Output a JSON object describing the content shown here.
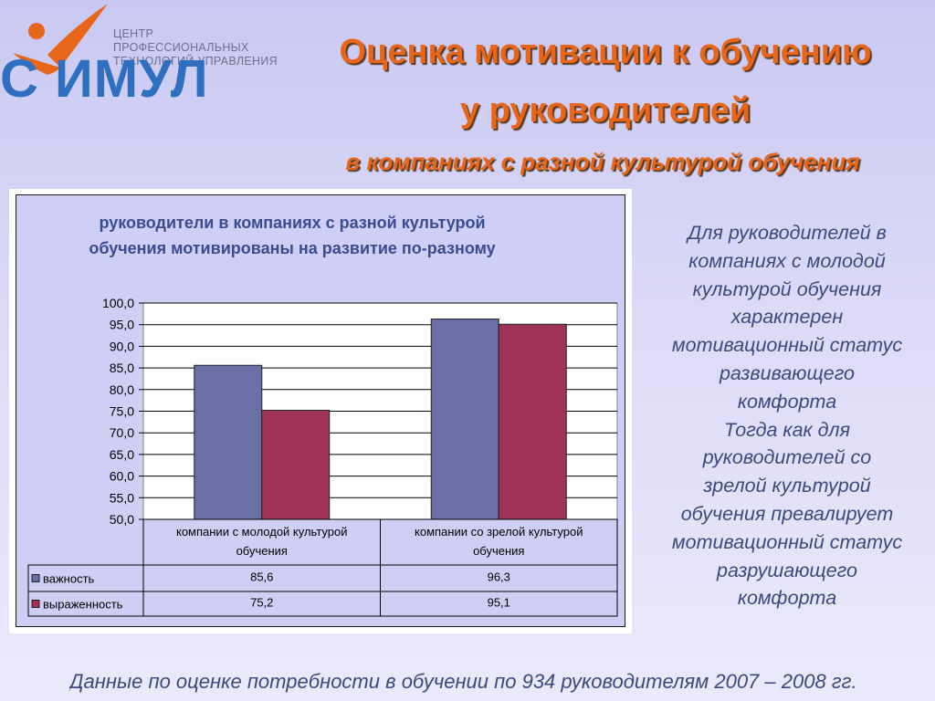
{
  "logo": {
    "subtitle_line1": "ЦЕНТР ПРОФЕССИОНАЛЬНЫХ",
    "subtitle_line2": "ТЕХНОЛОГИЙ УПРАВЛЕНИЯ",
    "name": "С ИМУЛ"
  },
  "header": {
    "title_line1": "Оценка мотивации к обучению",
    "title_line2": "у руководителей",
    "subtitle": "в компаниях с разной культурой обучения"
  },
  "chart_data": {
    "type": "bar",
    "title": "руководители в компаниях с разной культурой обучения мотивированы на развитие по-разному",
    "title_lines": [
      "руководители в компаниях с разной культурой",
      "обучения мотивированы на развитие по-разному"
    ],
    "categories": [
      "компании с молодой культурой обучения",
      "компании со зрелой культурой обучения"
    ],
    "category_lines": [
      [
        "компании с молодой культурой",
        "обучения"
      ],
      [
        "компании со зрелой культурой",
        "обучения"
      ]
    ],
    "series": [
      {
        "name": "важность",
        "values": [
          85.6,
          96.3
        ],
        "labels": [
          "85,6",
          "96,3"
        ],
        "color": "#6a6fa6"
      },
      {
        "name": "выраженность",
        "values": [
          75.2,
          95.1
        ],
        "labels": [
          "75,2",
          "95,1"
        ],
        "color": "#a03456"
      }
    ],
    "ylim": [
      50,
      100
    ],
    "yticks": [
      "50,0",
      "55,0",
      "60,0",
      "65,0",
      "70,0",
      "75,0",
      "80,0",
      "85,0",
      "90,0",
      "95,0",
      "100,0"
    ],
    "grid": true,
    "legend": "data table below the chart"
  },
  "right_text": [
    "Для руководителей в",
    "компаниях с молодой",
    "культурой обучения",
    "характерен",
    "мотивационный статус",
    "развивающего",
    "комфорта",
    "Тогда как для",
    "руководителей со",
    "зрелой культурой",
    "обучения превалирует",
    "мотивационный статус",
    "разрушающего",
    "комфорта"
  ],
  "footer": "Данные по оценке потребности в обучении по 934 руководителям 2007 – 2008 гг."
}
